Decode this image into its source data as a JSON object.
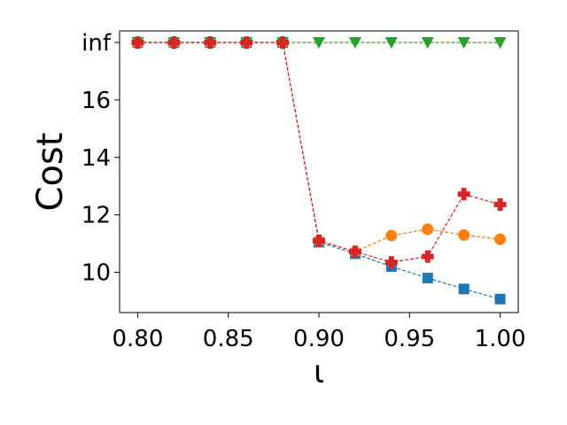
{
  "chart_data": {
    "type": "line",
    "xlabel": "ι",
    "ylabel": "Cost",
    "xlim": [
      0.79,
      1.01
    ],
    "ylim": [
      8.6,
      18.4
    ],
    "x_ticks": [
      0.8,
      0.85,
      0.9,
      0.95,
      1.0
    ],
    "x_tick_labels": [
      "0.80",
      "0.85",
      "0.90",
      "0.95",
      "1.00"
    ],
    "y_ticks": [
      10,
      12,
      14,
      16,
      18
    ],
    "y_tick_labels": [
      "10",
      "12",
      "14",
      "16",
      "inf"
    ],
    "grid": false,
    "x": [
      0.8,
      0.82,
      0.84,
      0.86,
      0.88,
      0.9,
      0.92,
      0.94,
      0.96,
      0.98,
      1.0
    ],
    "series": [
      {
        "color": "#1f77b4",
        "marker": "square",
        "values": [
          "inf",
          "inf",
          "inf",
          "inf",
          "inf",
          11.05,
          10.65,
          10.2,
          9.8,
          9.42,
          9.07
        ]
      },
      {
        "color": "#ff7f0e",
        "marker": "circle",
        "values": [
          "inf",
          "inf",
          "inf",
          "inf",
          "inf",
          11.1,
          10.72,
          11.28,
          11.5,
          11.3,
          11.15
        ]
      },
      {
        "color": "#2ca02c",
        "marker": "triangle-down",
        "values": [
          "inf",
          "inf",
          "inf",
          "inf",
          "inf",
          "inf",
          "inf",
          "inf",
          "inf",
          "inf",
          "inf"
        ]
      },
      {
        "color": "#d62728",
        "marker": "plus",
        "values": [
          "inf",
          "inf",
          "inf",
          "inf",
          "inf",
          11.1,
          10.72,
          10.35,
          10.55,
          12.72,
          12.36
        ]
      }
    ]
  }
}
